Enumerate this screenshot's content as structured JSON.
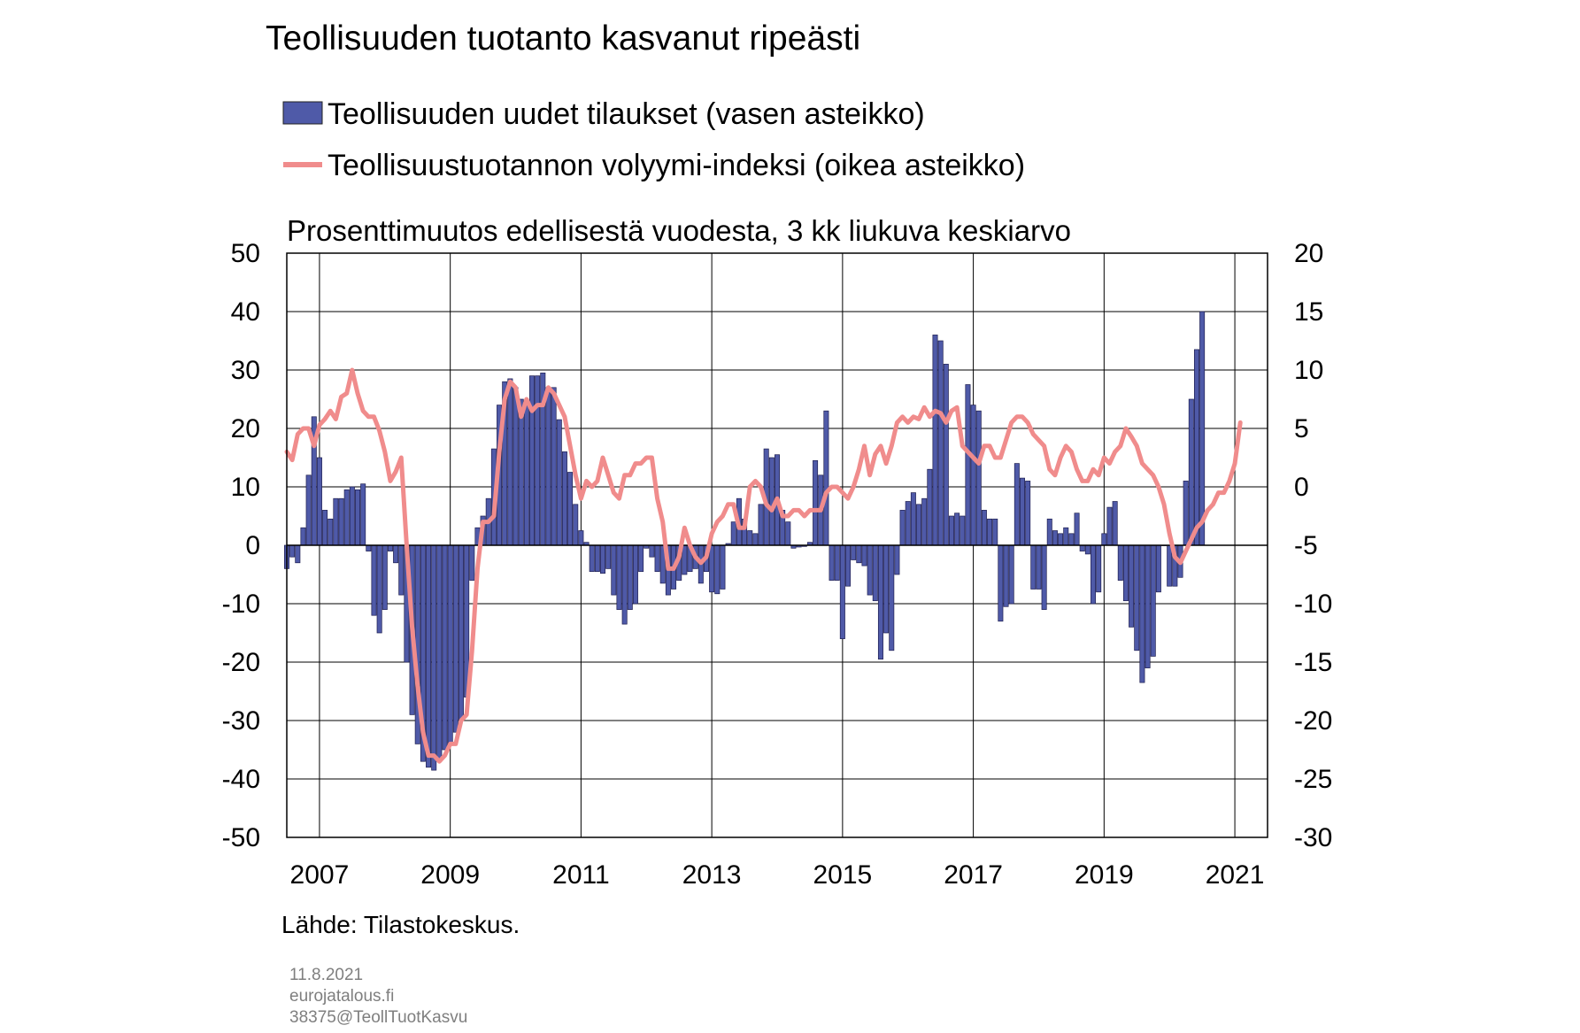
{
  "chart_data": {
    "type": "bar+line",
    "title": "Teollisuuden tuotanto kasvanut ripeästi",
    "subtitle": "Prosenttimuutos edellisestä vuodesta, 3 kk liukuva keskiarvo",
    "x_ticks": [
      "2007",
      "2009",
      "2011",
      "2013",
      "2015",
      "2017",
      "2019",
      "2021"
    ],
    "y_left": {
      "ticks": [
        50,
        40,
        30,
        20,
        10,
        0,
        -10,
        -20,
        -30,
        -40,
        -50
      ],
      "ylim": [
        -50,
        50
      ]
    },
    "y_right": {
      "ticks": [
        20,
        15,
        10,
        5,
        0,
        -5,
        -10,
        -15,
        -20,
        -25,
        -30
      ],
      "ylim": [
        -30,
        20
      ]
    },
    "x_range": [
      2006.5,
      2021.5
    ],
    "grid": true,
    "legend_position": "top",
    "series": [
      {
        "name": "Teollisuuden uudet tilaukset (vasen asteikko)",
        "type": "bar",
        "axis": "left",
        "color": "#4f5aa8",
        "x_start": "2006-07",
        "interval": "month",
        "values": [
          -4,
          -2,
          -3,
          3,
          12,
          22,
          15,
          6,
          4.5,
          8,
          8,
          9.5,
          10,
          9.5,
          10.5,
          -1,
          -12,
          -15,
          -11,
          -1,
          -3,
          -8.5,
          -20,
          -29,
          -34,
          -37,
          -38,
          -38.5,
          -37,
          -35,
          -34,
          -32,
          -30,
          -26,
          -6,
          3,
          5,
          8,
          16.5,
          24,
          28,
          28.5,
          27,
          25,
          24,
          29,
          29,
          29.5,
          27,
          27,
          21.5,
          16,
          12.5,
          7,
          2.5,
          0.5,
          -4.5,
          -4.5,
          -4.8,
          -4,
          -8.5,
          -11,
          -13.5,
          -11,
          -10,
          -4.5,
          -0.5,
          -2,
          -4.5,
          -6.5,
          -8.5,
          -7.5,
          -6,
          -5,
          -4.5,
          -4,
          -6.5,
          -4.5,
          -8,
          -8.3,
          -7.5,
          0.3,
          4,
          8,
          4.5,
          2.5,
          2,
          7,
          16.5,
          15,
          15.5,
          6,
          4,
          -0.5,
          -0.3,
          -0.2,
          0.5,
          14.5,
          12,
          23,
          -6,
          -6,
          -16,
          -7,
          -2.5,
          -3,
          -3.5,
          -8.5,
          -9.5,
          -19.5,
          -15,
          -18,
          -5,
          6,
          7.5,
          9,
          7,
          8,
          13,
          36,
          35,
          31,
          5,
          5.5,
          5,
          27.5,
          24,
          23,
          6,
          4.5,
          4.5,
          -13,
          -10.5,
          -10,
          14,
          11.5,
          11,
          -7.5,
          -7.5,
          -11,
          4.5,
          2.5,
          2,
          3,
          2,
          5.5,
          -1,
          -1.5,
          -10,
          -8,
          2,
          6.5,
          7.5,
          -6,
          -9.5,
          -14,
          -18,
          -23.5,
          -21,
          -19,
          -8,
          0,
          -7,
          -7,
          -5.5,
          11,
          25,
          33.5,
          40
        ]
      },
      {
        "name": "Teollisuustuotannon volyymi-indeksi (oikea asteikko)",
        "type": "line",
        "axis": "right",
        "color": "#f08c8c",
        "x_start": "2006-07",
        "interval": "month",
        "values": [
          3,
          2.3,
          4.5,
          5,
          5,
          3.5,
          5.3,
          5.8,
          6.5,
          5.8,
          7.7,
          8,
          10,
          8,
          6.5,
          6,
          6,
          4.8,
          3,
          0.5,
          1.3,
          2.5,
          -5,
          -12,
          -17,
          -21,
          -23,
          -23,
          -23.5,
          -23,
          -22,
          -22,
          -20,
          -19.5,
          -14,
          -7,
          -3,
          -3,
          -2.5,
          3,
          7.5,
          9,
          8.5,
          6,
          7.5,
          6.5,
          7,
          7,
          8.5,
          8,
          7,
          6,
          3.5,
          1,
          -1,
          0.5,
          0,
          0.5,
          2.5,
          1,
          -0.5,
          -1,
          1,
          1,
          2,
          2,
          2.5,
          2.5,
          -1,
          -3,
          -7,
          -7,
          -6,
          -3.5,
          -5,
          -6,
          -6.5,
          -6,
          -4,
          -3,
          -2.5,
          -1.5,
          -1.5,
          -3.5,
          -3.5,
          0,
          0.5,
          0,
          -1.5,
          -2,
          -1,
          -2.5,
          -2.5,
          -2,
          -2,
          -2.5,
          -2,
          -2,
          -2,
          -0.5,
          0,
          0,
          -0.5,
          -1,
          0,
          1.5,
          3.5,
          1,
          2.8,
          3.5,
          2,
          3.5,
          5.5,
          6,
          5.5,
          6,
          5.8,
          6.8,
          6,
          6.5,
          6.3,
          5.5,
          6.5,
          6.8,
          3.5,
          3,
          2.5,
          2,
          3.5,
          3.5,
          2.5,
          2.5,
          4,
          5.5,
          6,
          6,
          5.5,
          4.5,
          4,
          3.5,
          1.5,
          1,
          2.5,
          3.5,
          3,
          1.5,
          0.5,
          0.5,
          1.5,
          1,
          2.5,
          2,
          3,
          3.5,
          5,
          4.3,
          3.5,
          2,
          1.5,
          1,
          0,
          -1.5,
          -4,
          -6,
          -6.5,
          -5.5,
          -4.5,
          -3.5,
          -3,
          -2,
          -1.5,
          -0.5,
          -0.5,
          0.5,
          2,
          5.5
        ]
      }
    ]
  },
  "source": "Lähde: Tilastokeskus.",
  "footer": {
    "date": "11.8.2021",
    "site": "eurojatalous.fi",
    "code": "38375@TeollTuotKasvu"
  }
}
